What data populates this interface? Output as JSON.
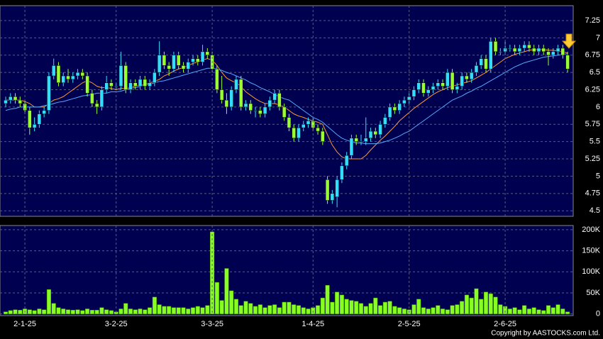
{
  "chart_data": [
    {
      "type": "candlestick",
      "open": [
        6.05,
        6.1,
        6.15,
        6.1,
        6.05,
        5.95,
        5.7,
        5.75,
        5.9,
        5.95,
        6.45,
        6.6,
        6.35,
        6.45,
        6.4,
        6.45,
        6.5,
        6.45,
        6.2,
        6.05,
        6.0,
        6.25,
        6.35,
        6.3,
        6.3,
        6.6,
        6.25,
        6.35,
        6.3,
        6.4,
        6.3,
        6.35,
        6.5,
        6.75,
        6.6,
        6.55,
        6.75,
        6.6,
        6.55,
        6.65,
        6.7,
        6.65,
        6.8,
        6.75,
        6.55,
        6.25,
        6.1,
        6.0,
        6.25,
        6.4,
        6.0,
        6.05,
        5.95,
        5.95,
        5.9,
        6.0,
        6.1,
        6.2,
        6.0,
        5.85,
        5.7,
        5.55,
        5.7,
        5.75,
        5.8,
        5.7,
        5.65,
        4.95,
        4.65,
        4.7,
        4.95,
        5.15,
        5.3,
        5.55,
        5.5,
        5.5,
        5.55,
        5.65,
        5.6,
        5.75,
        5.85,
        6.0,
        5.95,
        6.05,
        6.1,
        6.15,
        6.25,
        6.35,
        6.2,
        6.25,
        6.3,
        6.35,
        6.3,
        6.5,
        6.25,
        6.3,
        6.45,
        6.4,
        6.5,
        6.6,
        6.7,
        6.55,
        6.95,
        6.8,
        6.8,
        6.85,
        6.85,
        6.8,
        6.85,
        6.9,
        6.85,
        6.8,
        6.85,
        6.8,
        6.75,
        6.8,
        6.85,
        6.75
      ],
      "high": [
        6.15,
        6.2,
        6.2,
        6.15,
        6.1,
        6.0,
        5.85,
        5.95,
        6.0,
        6.5,
        6.7,
        6.65,
        6.5,
        6.55,
        6.5,
        6.55,
        6.55,
        6.5,
        6.25,
        6.1,
        6.3,
        6.45,
        6.4,
        6.35,
        6.8,
        6.65,
        6.4,
        6.4,
        6.45,
        6.45,
        6.4,
        6.55,
        6.95,
        6.8,
        6.65,
        6.8,
        6.8,
        6.65,
        6.7,
        6.75,
        6.75,
        6.9,
        6.85,
        6.8,
        6.6,
        6.45,
        6.2,
        6.3,
        6.45,
        6.45,
        6.1,
        6.1,
        6.0,
        6.0,
        6.05,
        6.15,
        6.25,
        6.25,
        6.05,
        5.9,
        5.75,
        5.75,
        5.8,
        5.85,
        5.85,
        5.75,
        5.7,
        5.0,
        4.8,
        5.0,
        5.2,
        5.35,
        5.6,
        5.6,
        5.6,
        5.85,
        5.7,
        5.7,
        5.8,
        5.9,
        6.05,
        6.05,
        6.1,
        6.15,
        6.2,
        6.3,
        6.4,
        6.4,
        6.3,
        6.35,
        6.4,
        6.4,
        6.55,
        6.55,
        6.35,
        6.5,
        6.5,
        6.55,
        6.65,
        6.75,
        6.75,
        7.0,
        7.0,
        6.85,
        6.95,
        6.9,
        6.9,
        6.9,
        6.95,
        6.95,
        6.9,
        6.9,
        6.9,
        6.85,
        6.85,
        6.9,
        6.9,
        6.8
      ],
      "low": [
        6.0,
        6.05,
        6.05,
        6.0,
        5.9,
        5.6,
        5.65,
        5.7,
        5.85,
        5.9,
        6.4,
        6.3,
        6.3,
        6.35,
        6.35,
        6.4,
        6.4,
        6.15,
        6.0,
        5.9,
        5.95,
        6.2,
        6.25,
        6.25,
        6.25,
        6.2,
        6.2,
        6.25,
        6.25,
        6.25,
        6.25,
        6.3,
        6.45,
        6.55,
        6.45,
        6.5,
        6.55,
        6.5,
        6.5,
        6.6,
        6.6,
        6.6,
        6.7,
        6.5,
        6.2,
        6.05,
        5.9,
        5.95,
        6.2,
        5.95,
        5.95,
        5.9,
        5.85,
        5.85,
        5.85,
        5.95,
        6.05,
        5.95,
        5.8,
        5.65,
        5.5,
        5.5,
        5.65,
        5.7,
        5.65,
        5.6,
        5.45,
        4.6,
        4.6,
        4.55,
        4.9,
        5.1,
        5.25,
        5.45,
        5.45,
        5.45,
        5.5,
        5.55,
        5.55,
        5.7,
        5.8,
        5.9,
        5.9,
        6.0,
        6.05,
        6.1,
        6.2,
        6.15,
        6.15,
        6.2,
        6.25,
        6.25,
        6.25,
        6.2,
        6.2,
        6.25,
        6.35,
        6.35,
        6.45,
        6.55,
        6.5,
        6.5,
        6.75,
        6.75,
        6.75,
        6.8,
        6.75,
        6.75,
        6.8,
        6.8,
        6.75,
        6.75,
        6.75,
        6.6,
        6.7,
        6.75,
        6.7,
        6.5
      ],
      "close": [
        6.1,
        6.15,
        6.1,
        6.05,
        5.95,
        5.7,
        5.75,
        5.9,
        5.95,
        6.45,
        6.6,
        6.35,
        6.45,
        6.4,
        6.45,
        6.5,
        6.45,
        6.2,
        6.05,
        6.0,
        6.25,
        6.35,
        6.3,
        6.3,
        6.6,
        6.25,
        6.35,
        6.3,
        6.4,
        6.3,
        6.35,
        6.5,
        6.75,
        6.6,
        6.55,
        6.75,
        6.6,
        6.55,
        6.65,
        6.7,
        6.65,
        6.8,
        6.75,
        6.55,
        6.25,
        6.1,
        6.0,
        6.25,
        6.4,
        6.0,
        6.05,
        5.95,
        5.95,
        5.9,
        6.0,
        6.1,
        6.2,
        6.0,
        5.85,
        5.7,
        5.55,
        5.7,
        5.75,
        5.8,
        5.7,
        5.65,
        5.5,
        4.65,
        4.75,
        4.95,
        5.15,
        5.3,
        5.55,
        5.5,
        5.5,
        5.55,
        5.65,
        5.6,
        5.75,
        5.85,
        6.0,
        5.95,
        6.05,
        6.1,
        6.15,
        6.25,
        6.35,
        6.2,
        6.25,
        6.3,
        6.35,
        6.3,
        6.5,
        6.25,
        6.3,
        6.45,
        6.4,
        6.5,
        6.6,
        6.7,
        6.55,
        6.95,
        6.8,
        6.8,
        6.85,
        6.85,
        6.8,
        6.85,
        6.9,
        6.85,
        6.8,
        6.85,
        6.8,
        6.75,
        6.8,
        6.85,
        6.75,
        6.55
      ],
      "up_color": "#33ddff",
      "down_color": "#99ff33",
      "series": [
        {
          "color": "#ff9933",
          "values": [
            6.1,
            6.1,
            6.1,
            6.1,
            6.08,
            6.05,
            6.0,
            6.0,
            6.0,
            6.05,
            6.1,
            6.12,
            6.15,
            6.2,
            6.25,
            6.3,
            6.35,
            6.38,
            6.35,
            6.3,
            6.28,
            6.28,
            6.27,
            6.25,
            6.27,
            6.27,
            6.28,
            6.3,
            6.32,
            6.33,
            6.35,
            6.37,
            6.4,
            6.45,
            6.48,
            6.52,
            6.55,
            6.57,
            6.6,
            6.63,
            6.65,
            6.68,
            6.7,
            6.68,
            6.6,
            6.5,
            6.42,
            6.38,
            6.35,
            6.3,
            6.22,
            6.17,
            6.12,
            6.08,
            6.05,
            6.05,
            6.05,
            6.03,
            6.0,
            5.95,
            5.9,
            5.87,
            5.85,
            5.82,
            5.8,
            5.78,
            5.75,
            5.6,
            5.45,
            5.35,
            5.28,
            5.25,
            5.25,
            5.25,
            5.25,
            5.3,
            5.38,
            5.45,
            5.52,
            5.58,
            5.65,
            5.72,
            5.8,
            5.86,
            5.92,
            5.98,
            6.03,
            6.08,
            6.13,
            6.18,
            6.22,
            6.25,
            6.28,
            6.3,
            6.32,
            6.34,
            6.36,
            6.38,
            6.42,
            6.46,
            6.5,
            6.55,
            6.6,
            6.65,
            6.7,
            6.73,
            6.76,
            6.78,
            6.8,
            6.82,
            6.83,
            6.83,
            6.83,
            6.82,
            6.82,
            6.81,
            6.8,
            6.78
          ]
        },
        {
          "color": "#55aaff",
          "values": [
            5.95,
            5.97,
            5.98,
            6.0,
            6.0,
            6.0,
            6.0,
            6.0,
            6.02,
            6.03,
            6.05,
            6.07,
            6.08,
            6.1,
            6.12,
            6.14,
            6.16,
            6.17,
            6.18,
            6.2,
            6.2,
            6.2,
            6.22,
            6.22,
            6.23,
            6.25,
            6.27,
            6.28,
            6.3,
            6.32,
            6.33,
            6.35,
            6.37,
            6.38,
            6.4,
            6.42,
            6.44,
            6.46,
            6.48,
            6.5,
            6.52,
            6.54,
            6.56,
            6.56,
            6.55,
            6.53,
            6.5,
            6.48,
            6.45,
            6.42,
            6.39,
            6.35,
            6.32,
            6.28,
            6.25,
            6.22,
            6.18,
            6.15,
            6.12,
            6.1,
            6.05,
            6.0,
            5.95,
            5.9,
            5.85,
            5.82,
            5.78,
            5.72,
            5.66,
            5.6,
            5.55,
            5.52,
            5.5,
            5.48,
            5.48,
            5.47,
            5.47,
            5.47,
            5.48,
            5.5,
            5.52,
            5.55,
            5.58,
            5.62,
            5.65,
            5.7,
            5.75,
            5.8,
            5.85,
            5.9,
            5.95,
            6.0,
            6.05,
            6.1,
            6.13,
            6.16,
            6.2,
            6.23,
            6.27,
            6.3,
            6.34,
            6.38,
            6.42,
            6.46,
            6.5,
            6.54,
            6.58,
            6.61,
            6.64,
            6.66,
            6.68,
            6.7,
            6.72,
            6.73,
            6.74,
            6.75,
            6.76,
            6.77
          ]
        }
      ],
      "ylim": [
        4.42,
        7.465
      ],
      "yticks": [
        4.5,
        4.75,
        5,
        5.25,
        5.5,
        5.75,
        6,
        6.25,
        6.5,
        6.75,
        7,
        7.25
      ],
      "grid": true
    },
    {
      "type": "bar",
      "categories": [
        null,
        null,
        null,
        null,
        "2-1-25",
        null,
        null,
        null,
        null,
        null,
        null,
        null,
        null,
        null,
        null,
        null,
        null,
        null,
        null,
        null,
        null,
        null,
        null,
        "3-2-25",
        null,
        null,
        null,
        null,
        null,
        null,
        null,
        null,
        null,
        null,
        null,
        null,
        null,
        null,
        null,
        null,
        null,
        null,
        null,
        "3-3-25",
        null,
        null,
        null,
        null,
        null,
        null,
        null,
        null,
        null,
        null,
        null,
        null,
        null,
        null,
        null,
        null,
        null,
        null,
        null,
        null,
        "1-4-25",
        null,
        null,
        null,
        null,
        null,
        null,
        null,
        null,
        null,
        null,
        null,
        null,
        null,
        null,
        null,
        null,
        null,
        null,
        null,
        "2-5-25",
        null,
        null,
        null,
        null,
        null,
        null,
        null,
        null,
        null,
        null,
        null,
        null,
        null,
        null,
        null,
        null,
        null,
        null,
        null,
        "2-6-25",
        null,
        null,
        null,
        null,
        null,
        null,
        null,
        null,
        null,
        null,
        null,
        null,
        null
      ],
      "values": [
        5000,
        8000,
        10000,
        9000,
        12000,
        10000,
        8000,
        12000,
        10000,
        58000,
        25000,
        15000,
        12000,
        10000,
        9000,
        10000,
        8000,
        12000,
        9000,
        9000,
        15000,
        10000,
        8000,
        5000,
        12000,
        25000,
        12000,
        10000,
        12000,
        10000,
        15000,
        40000,
        22000,
        18000,
        18000,
        15000,
        15000,
        15000,
        12000,
        15000,
        18000,
        15000,
        20000,
        195000,
        75000,
        32000,
        108000,
        55000,
        35000,
        20000,
        30000,
        25000,
        18000,
        22000,
        15000,
        20000,
        22000,
        15000,
        28000,
        28000,
        22000,
        20000,
        15000,
        12000,
        15000,
        20000,
        38000,
        68000,
        28000,
        52000,
        45000,
        35000,
        32000,
        30000,
        25000,
        18000,
        25000,
        38000,
        20000,
        28000,
        30000,
        18000,
        15000,
        12000,
        10000,
        22000,
        35000,
        15000,
        12000,
        15000,
        20000,
        12000,
        10000,
        20000,
        22000,
        30000,
        45000,
        38000,
        60000,
        35000,
        52000,
        48000,
        40000,
        22000,
        18000,
        12000,
        15000,
        10000,
        20000,
        12000,
        15000,
        10000,
        8000,
        20000,
        15000,
        22000,
        12000,
        5000
      ],
      "color": "#88ff22",
      "ylim": [
        -4000,
        210000
      ],
      "yticks": [
        0,
        {
          "value": 50000,
          "label": "50K"
        },
        {
          "value": 100000,
          "label": "100K"
        },
        {
          "value": 150000,
          "label": "150K"
        },
        {
          "value": 200000,
          "label": "200K"
        }
      ],
      "grid": true,
      "annotation": "Copyright by AASTOCKS.com Ltd."
    }
  ]
}
